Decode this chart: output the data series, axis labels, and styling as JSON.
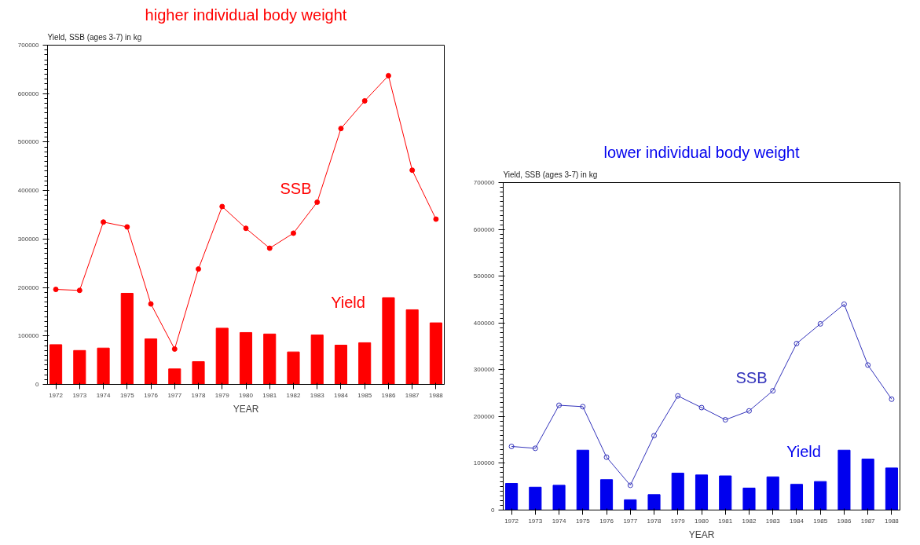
{
  "chart_data": [
    {
      "type": "bar",
      "title": "higher individual body weight",
      "ylabel": "Yield, SSB (ages 3-7) in kg",
      "xlabel": "YEAR",
      "categories": [
        "1972",
        "1973",
        "1974",
        "1975",
        "1976",
        "1977",
        "1978",
        "1979",
        "1980",
        "1981",
        "1982",
        "1983",
        "1984",
        "1985",
        "1986",
        "1987",
        "1988"
      ],
      "series": [
        {
          "name": "Yield",
          "color": "#ff0000",
          "values": [
            82000,
            70000,
            75000,
            188000,
            94000,
            32000,
            47000,
            116000,
            107000,
            104000,
            67000,
            102000,
            81000,
            86000,
            179000,
            154000,
            127000
          ]
        },
        {
          "name": "SSB",
          "type": "line",
          "color": "#ff0000",
          "values": [
            196000,
            194000,
            335000,
            325000,
            166000,
            73000,
            238000,
            367000,
            322000,
            281000,
            312000,
            376000,
            528000,
            585000,
            637000,
            442000,
            341000
          ]
        }
      ],
      "ylim": [
        0,
        700000
      ],
      "yticks": [
        0,
        100000,
        200000,
        300000,
        400000,
        500000,
        600000,
        700000
      ],
      "grid": false,
      "legend": false,
      "marker": "circle",
      "line_style": "solid"
    },
    {
      "type": "bar",
      "title": "lower individual body weight",
      "ylabel": "Yield, SSB (ages 3-7) in kg",
      "xlabel": "YEAR",
      "categories": [
        "1972",
        "1973",
        "1974",
        "1975",
        "1976",
        "1977",
        "1978",
        "1979",
        "1980",
        "1981",
        "1982",
        "1983",
        "1984",
        "1985",
        "1986",
        "1987",
        "1988"
      ],
      "series": [
        {
          "name": "Yield",
          "color": "#0000ee",
          "values": [
            57000,
            49000,
            53000,
            128000,
            65000,
            22000,
            33000,
            79000,
            75000,
            73000,
            47000,
            71000,
            55000,
            61000,
            128000,
            109000,
            90000
          ]
        },
        {
          "name": "SSB",
          "type": "line",
          "color": "#3333bb",
          "values": [
            136000,
            132000,
            224000,
            221000,
            113000,
            53000,
            159000,
            244000,
            219000,
            193000,
            212000,
            255000,
            356000,
            398000,
            440000,
            310000,
            237000
          ]
        }
      ],
      "ylim": [
        0,
        700000
      ],
      "yticks": [
        0,
        100000,
        200000,
        300000,
        400000,
        500000,
        600000,
        700000
      ],
      "grid": false,
      "legend": false,
      "marker": "circle",
      "line_style": "solid"
    }
  ]
}
